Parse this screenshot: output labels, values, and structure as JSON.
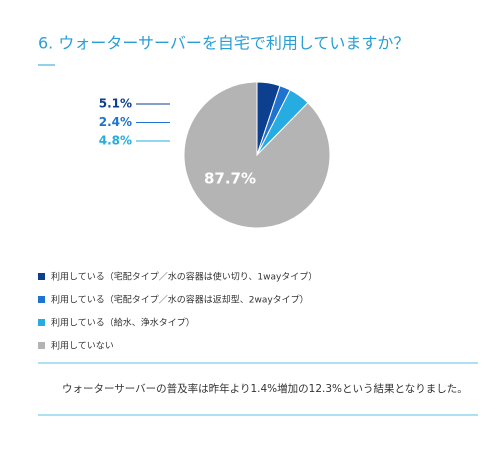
{
  "chart_data": {
    "type": "pie",
    "title": "6. ウォーターサーバーを自宅で利用していますか？",
    "categories": [
      "利用している（宅配タイプ／水の容器は使い切り、1wayタイプ）",
      "利用している（宅配タイプ／水の容器は返却型、2wayタイプ）",
      "利用している（給水、浄水タイプ）",
      "利用していない"
    ],
    "values": [
      5.1,
      2.4,
      4.8,
      87.7
    ],
    "value_labels": [
      "5.1%",
      "2.4%",
      "4.8%",
      "87.7%"
    ],
    "colors": [
      "#0d3f8f",
      "#1f73cf",
      "#27ace2",
      "#b4b4b4"
    ],
    "annotation": "ウォーターサーバーの普及率は昨年より1.4%増加の12.3%という結果となりました。"
  }
}
